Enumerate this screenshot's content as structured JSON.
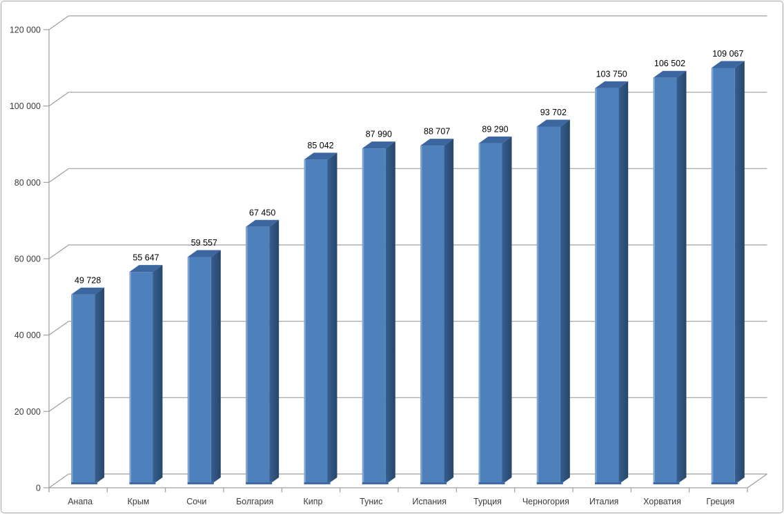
{
  "chart_data": {
    "type": "bar",
    "variant": "3d-column",
    "title": "",
    "xlabel": "",
    "ylabel": "",
    "categories": [
      "Анапа",
      "Крым",
      "Сочи",
      "Болгария",
      "Кипр",
      "Тунис",
      "Испания",
      "Турция",
      "Черногория",
      "Италия",
      "Хорватия",
      "Греция"
    ],
    "values": [
      49728,
      55647,
      59557,
      67450,
      85042,
      87990,
      88707,
      89290,
      93702,
      103750,
      106502,
      109067
    ],
    "value_labels": [
      "49 728",
      "55 647",
      "59 557",
      "67 450",
      "85 042",
      "87 990",
      "88 707",
      "89 290",
      "93 702",
      "103 750",
      "106 502",
      "109 067"
    ],
    "ylim": [
      0,
      120000
    ],
    "y_tick_step": 20000,
    "y_tick_labels": [
      "0",
      "20 000",
      "40 000",
      "60 000",
      "80 000",
      "100 000",
      "120 000"
    ],
    "grid": "horizontal-3d-backwall",
    "legend": "none",
    "colors": {
      "bar_front": "#4e80bc",
      "bar_front_highlight": "#7fa5d1",
      "bar_front_bottom_shade": "#3f6ba3",
      "bar_top": "#3c66a0",
      "bar_side_light": "#365e8f",
      "bar_side_dark": "#274769",
      "gridline": "#9e9e9e",
      "axis": "#9e9e9e",
      "value_label_text": "#000000",
      "tick_label_text": "#3a3a3a",
      "background": "#ffffff",
      "frame_border": "#a4a4a4"
    }
  }
}
